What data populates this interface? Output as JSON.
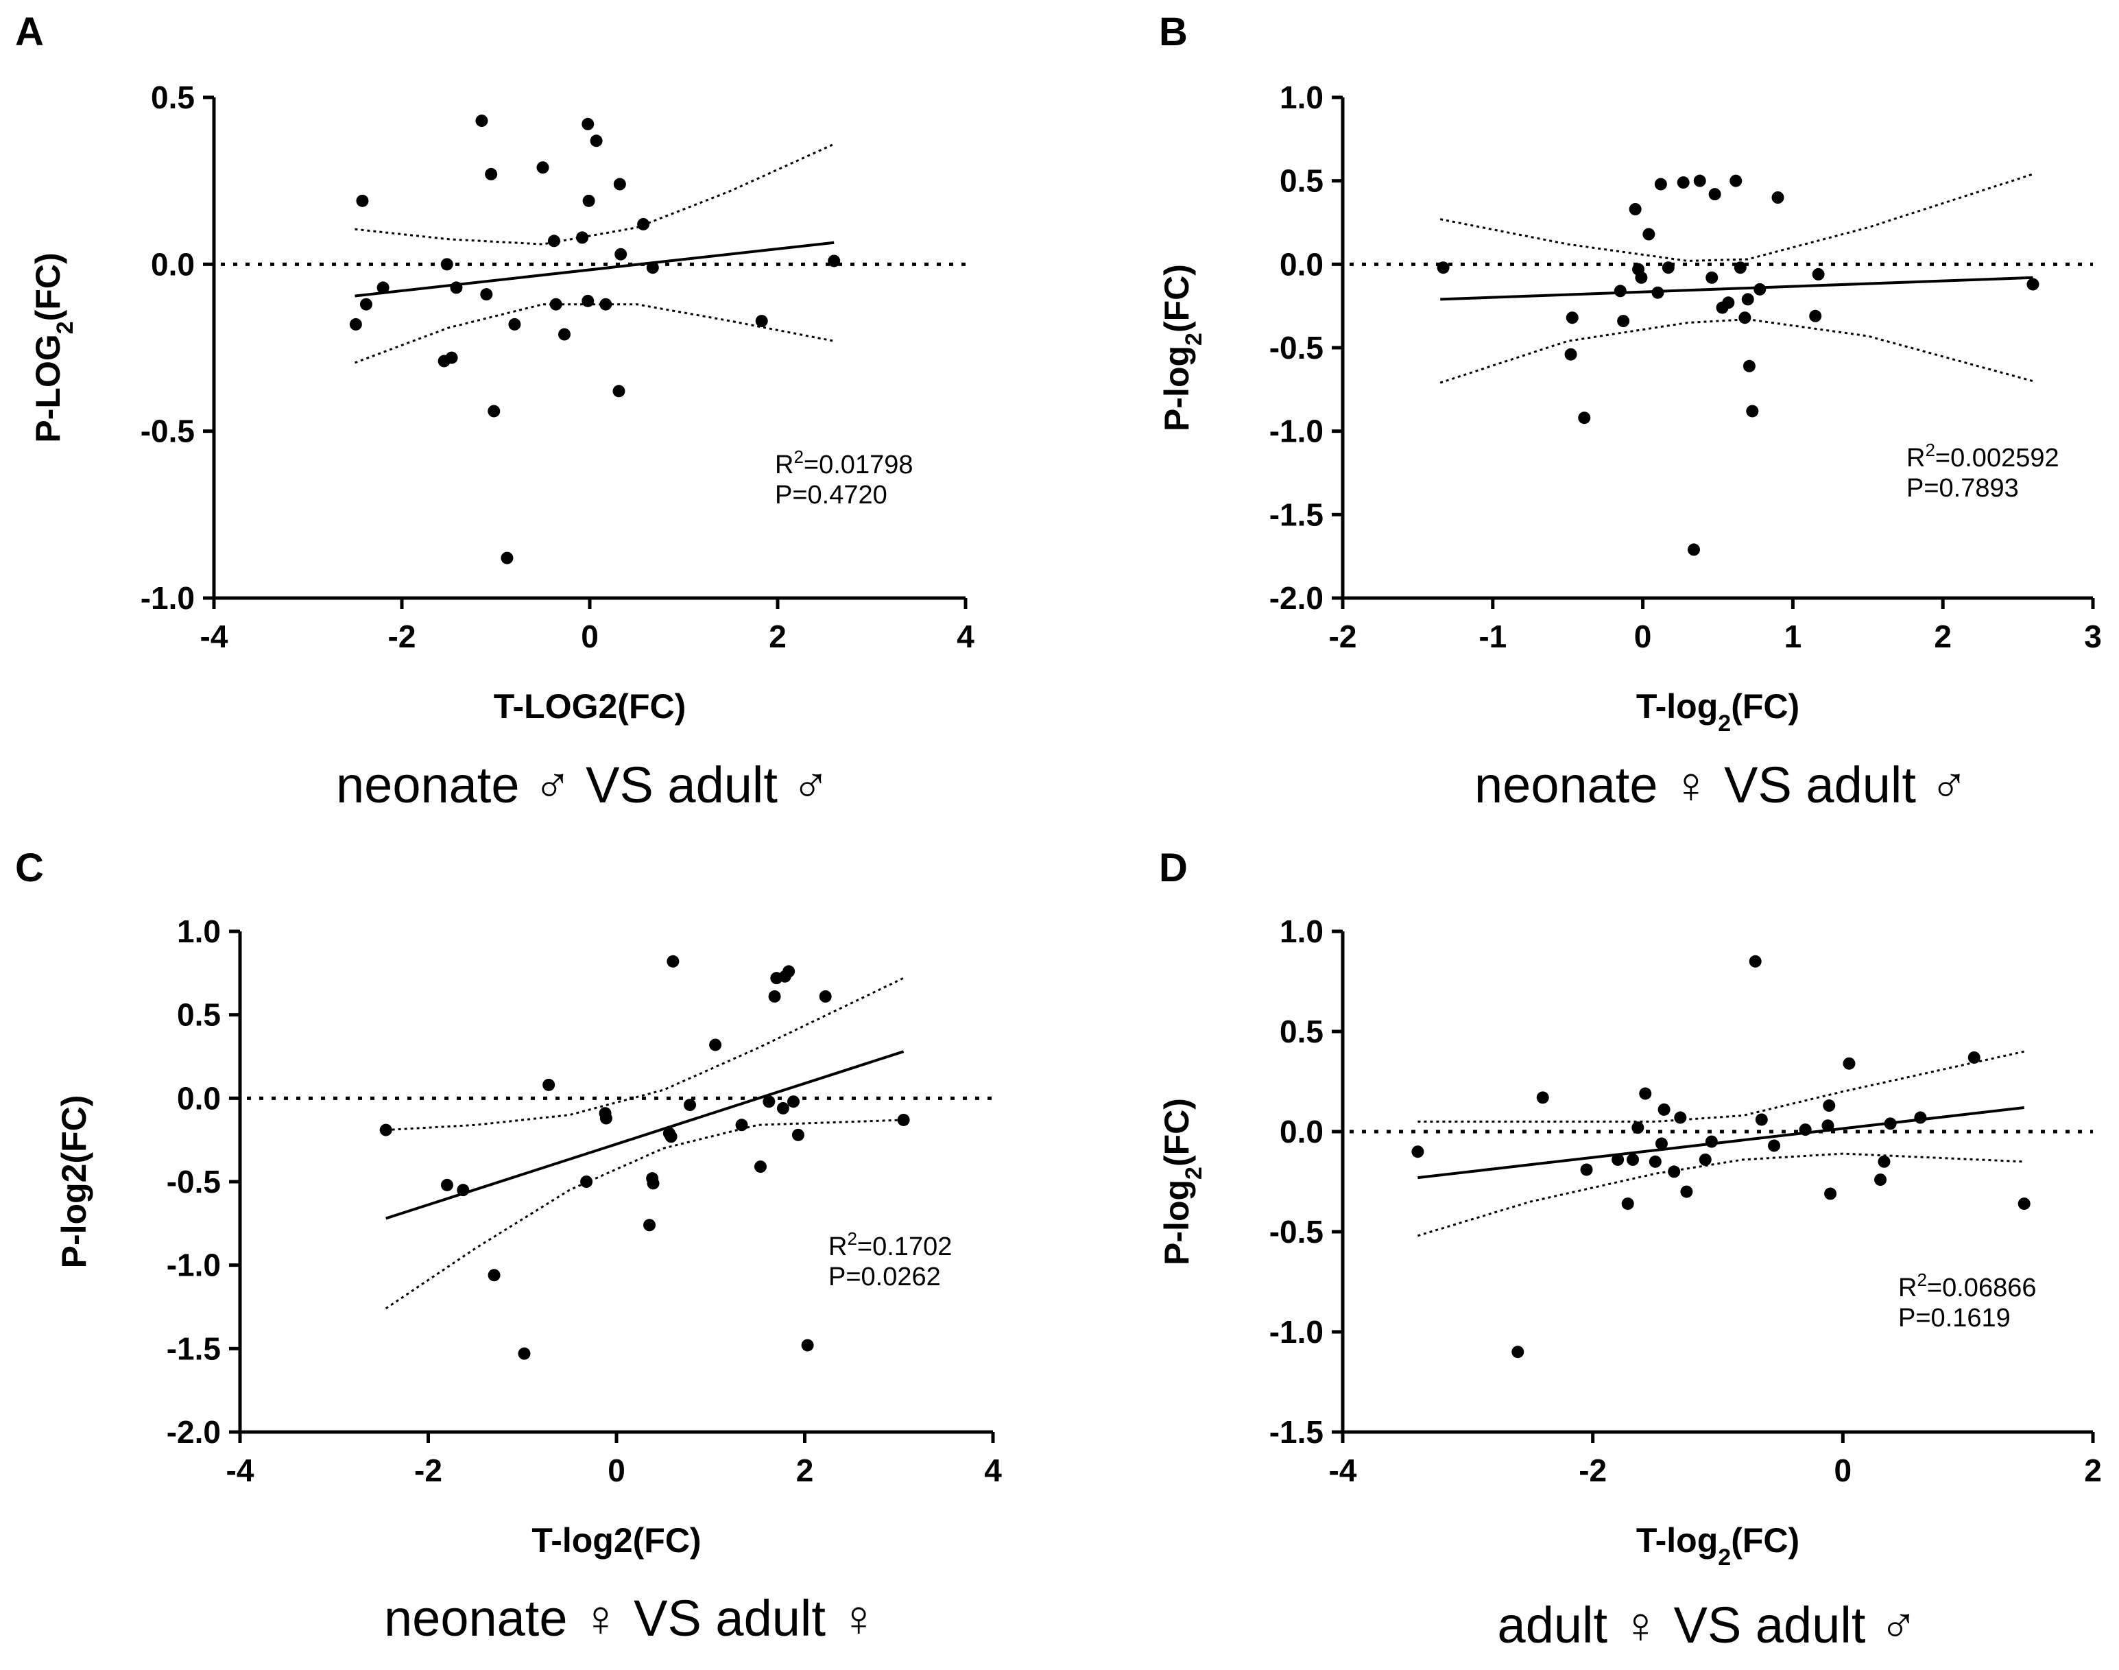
{
  "chart_data": [
    {
      "panel": "A",
      "type": "scatter",
      "caption": "neonate ♂ VS adult ♂",
      "xlabel": "T-LOG2(FC)",
      "ylabel": {
        "pre": "P-LOG",
        "sub": "2",
        "post": "(FC)"
      },
      "xlim": [
        -4,
        4
      ],
      "ylim": [
        -1.0,
        0.5
      ],
      "xticks": [
        -4,
        -2,
        0,
        2,
        4
      ],
      "xtick_labels": [
        "-4",
        "-2",
        "0",
        "2",
        "4"
      ],
      "yticks": [
        -1.0,
        -0.5,
        0.0,
        0.5
      ],
      "ytick_labels": [
        "-1.0",
        "-0.5",
        "0.0",
        "0.5"
      ],
      "stats": {
        "r2_text": "=0.01798",
        "p_text": "P=0.4720"
      },
      "regression": {
        "x": [
          -2.5,
          2.6
        ],
        "y": [
          -0.095,
          0.065
        ]
      },
      "ci_upper": [
        [
          -2.5,
          0.105
        ],
        [
          -1.5,
          0.075
        ],
        [
          -0.5,
          0.06
        ],
        [
          0.5,
          0.11
        ],
        [
          1.5,
          0.22
        ],
        [
          2.6,
          0.36
        ]
      ],
      "ci_lower": [
        [
          -2.5,
          -0.295
        ],
        [
          -1.5,
          -0.19
        ],
        [
          -0.5,
          -0.12
        ],
        [
          0.5,
          -0.12
        ],
        [
          1.5,
          -0.17
        ],
        [
          2.6,
          -0.23
        ]
      ],
      "points": [
        [
          -2.42,
          0.19
        ],
        [
          -2.38,
          -0.12
        ],
        [
          -2.2,
          -0.07
        ],
        [
          -2.49,
          -0.18
        ],
        [
          -1.55,
          -0.29
        ],
        [
          -1.47,
          -0.28
        ],
        [
          -1.52,
          0.0
        ],
        [
          -1.42,
          -0.07
        ],
        [
          -1.15,
          0.43
        ],
        [
          -1.05,
          0.27
        ],
        [
          -1.1,
          -0.09
        ],
        [
          -1.02,
          -0.44
        ],
        [
          -0.88,
          -0.88
        ],
        [
          -0.8,
          -0.18
        ],
        [
          -0.5,
          0.29
        ],
        [
          -0.38,
          0.07
        ],
        [
          -0.36,
          -0.12
        ],
        [
          -0.27,
          -0.21
        ],
        [
          -0.08,
          0.08
        ],
        [
          -0.02,
          0.42
        ],
        [
          0.07,
          0.37
        ],
        [
          -0.01,
          0.19
        ],
        [
          -0.02,
          -0.11
        ],
        [
          0.17,
          -0.12
        ],
        [
          0.32,
          0.24
        ],
        [
          0.33,
          0.03
        ],
        [
          0.31,
          -0.38
        ],
        [
          0.57,
          0.12
        ],
        [
          0.67,
          -0.01
        ],
        [
          1.83,
          -0.17
        ],
        [
          2.6,
          0.01
        ]
      ]
    },
    {
      "panel": "B",
      "type": "scatter",
      "caption": "neonate ♀ VS adult ♂",
      "xlabel": {
        "pre": "T-log",
        "sub": "2",
        "post": "(FC)"
      },
      "ylabel": {
        "pre": "P-log",
        "sub": "2",
        "post": "(FC)"
      },
      "xlim": [
        -2,
        3
      ],
      "ylim": [
        -2.0,
        1.0
      ],
      "xticks": [
        -2,
        -1,
        0,
        1,
        2,
        3
      ],
      "xtick_labels": [
        "-2",
        "-1",
        "0",
        "1",
        "2",
        "3"
      ],
      "yticks": [
        -2.0,
        -1.5,
        -1.0,
        -0.5,
        0.0,
        0.5,
        1.0
      ],
      "ytick_labels": [
        "-2.0",
        "-1.5",
        "-1.0",
        "-0.5",
        "0.0",
        "0.5",
        "1.0"
      ],
      "stats": {
        "r2_text": "=0.002592",
        "p_text": "P=0.7893"
      },
      "regression": {
        "x": [
          -1.35,
          2.6
        ],
        "y": [
          -0.21,
          -0.08
        ]
      },
      "ci_upper": [
        [
          -1.35,
          0.27
        ],
        [
          -0.5,
          0.12
        ],
        [
          0.3,
          0.02
        ],
        [
          0.7,
          0.03
        ],
        [
          1.5,
          0.22
        ],
        [
          2.6,
          0.54
        ]
      ],
      "ci_lower": [
        [
          -1.35,
          -0.71
        ],
        [
          -0.5,
          -0.46
        ],
        [
          0.3,
          -0.35
        ],
        [
          0.7,
          -0.33
        ],
        [
          1.5,
          -0.43
        ],
        [
          2.6,
          -0.7
        ]
      ],
      "points": [
        [
          -1.33,
          -0.02
        ],
        [
          -0.47,
          -0.32
        ],
        [
          -0.48,
          -0.54
        ],
        [
          -0.39,
          -0.92
        ],
        [
          -0.15,
          -0.16
        ],
        [
          -0.13,
          -0.34
        ],
        [
          -0.05,
          0.33
        ],
        [
          -0.03,
          -0.03
        ],
        [
          -0.01,
          -0.08
        ],
        [
          0.04,
          0.18
        ],
        [
          0.1,
          -0.17
        ],
        [
          0.12,
          0.48
        ],
        [
          0.17,
          -0.02
        ],
        [
          0.27,
          0.49
        ],
        [
          0.34,
          -1.71
        ],
        [
          0.38,
          0.5
        ],
        [
          0.46,
          -0.08
        ],
        [
          0.48,
          0.42
        ],
        [
          0.53,
          -0.26
        ],
        [
          0.57,
          -0.23
        ],
        [
          0.62,
          0.5
        ],
        [
          0.65,
          -0.02
        ],
        [
          0.68,
          -0.32
        ],
        [
          0.7,
          -0.21
        ],
        [
          0.71,
          -0.61
        ],
        [
          0.73,
          -0.88
        ],
        [
          0.78,
          -0.15
        ],
        [
          0.9,
          0.4
        ],
        [
          1.17,
          -0.06
        ],
        [
          1.15,
          -0.31
        ],
        [
          2.6,
          -0.12
        ]
      ]
    },
    {
      "panel": "C",
      "type": "scatter",
      "caption": "neonate ♀ VS adult ♀",
      "xlabel": "T-log2(FC)",
      "ylabel": "P-log2(FC)",
      "xlim": [
        -4,
        4
      ],
      "ylim": [
        -2.0,
        1.0
      ],
      "xticks": [
        -4,
        -2,
        0,
        2,
        4
      ],
      "xtick_labels": [
        "-4",
        "-2",
        "0",
        "2",
        "4"
      ],
      "yticks": [
        -2.0,
        -1.5,
        -1.0,
        -0.5,
        0.0,
        0.5,
        1.0
      ],
      "ytick_labels": [
        "-2.0",
        "-1.5",
        "-1.0",
        "-0.5",
        "0.0",
        "0.5",
        "1.0"
      ],
      "stats": {
        "r2_text": "=0.1702",
        "p_text": "P=0.0262"
      },
      "regression": {
        "x": [
          -2.45,
          3.05
        ],
        "y": [
          -0.72,
          0.28
        ]
      },
      "ci_upper": [
        [
          -2.45,
          -0.19
        ],
        [
          -1.5,
          -0.16
        ],
        [
          -0.5,
          -0.1
        ],
        [
          0.5,
          0.05
        ],
        [
          1.5,
          0.3
        ],
        [
          3.05,
          0.72
        ]
      ],
      "ci_lower": [
        [
          -2.45,
          -1.26
        ],
        [
          -1.5,
          -0.9
        ],
        [
          -0.5,
          -0.55
        ],
        [
          0.5,
          -0.3
        ],
        [
          1.5,
          -0.16
        ],
        [
          3.05,
          -0.13
        ]
      ],
      "points": [
        [
          -2.45,
          -0.19
        ],
        [
          -1.8,
          -0.52
        ],
        [
          -1.63,
          -0.55
        ],
        [
          -1.3,
          -1.06
        ],
        [
          -0.98,
          -1.53
        ],
        [
          -0.72,
          0.08
        ],
        [
          -0.32,
          -0.5
        ],
        [
          -0.12,
          -0.09
        ],
        [
          -0.11,
          -0.12
        ],
        [
          0.35,
          -0.76
        ],
        [
          0.38,
          -0.48
        ],
        [
          0.39,
          -0.51
        ],
        [
          0.56,
          -0.21
        ],
        [
          0.58,
          -0.23
        ],
        [
          0.6,
          0.82
        ],
        [
          0.78,
          -0.04
        ],
        [
          1.05,
          0.32
        ],
        [
          1.33,
          -0.16
        ],
        [
          1.53,
          -0.41
        ],
        [
          1.62,
          -0.02
        ],
        [
          1.68,
          0.61
        ],
        [
          1.7,
          0.72
        ],
        [
          1.77,
          -0.06
        ],
        [
          1.79,
          0.73
        ],
        [
          1.83,
          0.76
        ],
        [
          1.88,
          -0.02
        ],
        [
          1.93,
          -0.22
        ],
        [
          2.03,
          -1.48
        ],
        [
          2.22,
          0.61
        ],
        [
          3.05,
          -0.13
        ]
      ]
    },
    {
      "panel": "D",
      "type": "scatter",
      "caption": "adult ♀ VS adult ♂",
      "xlabel": {
        "pre": "T-log",
        "sub": "2",
        "post": "(FC)"
      },
      "ylabel": {
        "pre": "P-log",
        "sub": "2",
        "post": "(FC)"
      },
      "xlim": [
        -4,
        2
      ],
      "ylim": [
        -1.5,
        1.0
      ],
      "xticks": [
        -4,
        -2,
        0,
        2
      ],
      "xtick_labels": [
        "-4",
        "-2",
        "0",
        "2"
      ],
      "yticks": [
        -1.5,
        -1.0,
        -0.5,
        0.0,
        0.5,
        1.0
      ],
      "ytick_labels": [
        "-1.5",
        "-1.0",
        "-0.5",
        "0.0",
        "0.5",
        "1.0"
      ],
      "stats": {
        "r2_text": "=0.06866",
        "p_text": "P=0.1619"
      },
      "regression": {
        "x": [
          -3.4,
          1.45
        ],
        "y": [
          -0.23,
          0.12
        ]
      },
      "ci_upper": [
        [
          -3.4,
          0.05
        ],
        [
          -2.5,
          0.05
        ],
        [
          -1.5,
          0.05
        ],
        [
          -0.8,
          0.08
        ],
        [
          0,
          0.2
        ],
        [
          1.45,
          0.4
        ]
      ],
      "ci_lower": [
        [
          -3.4,
          -0.52
        ],
        [
          -2.5,
          -0.35
        ],
        [
          -1.5,
          -0.21
        ],
        [
          -0.8,
          -0.14
        ],
        [
          0,
          -0.11
        ],
        [
          1.45,
          -0.15
        ]
      ],
      "points": [
        [
          -3.4,
          -0.1
        ],
        [
          -2.6,
          -1.1
        ],
        [
          -2.4,
          0.17
        ],
        [
          -2.05,
          -0.19
        ],
        [
          -1.8,
          -0.14
        ],
        [
          -1.72,
          -0.36
        ],
        [
          -1.68,
          -0.14
        ],
        [
          -1.64,
          0.02
        ],
        [
          -1.58,
          0.19
        ],
        [
          -1.5,
          -0.15
        ],
        [
          -1.45,
          -0.06
        ],
        [
          -1.43,
          0.11
        ],
        [
          -1.35,
          -0.2
        ],
        [
          -1.3,
          0.07
        ],
        [
          -1.25,
          -0.3
        ],
        [
          -1.1,
          -0.14
        ],
        [
          -1.05,
          -0.05
        ],
        [
          -0.7,
          0.85
        ],
        [
          -0.65,
          0.06
        ],
        [
          -0.55,
          -0.07
        ],
        [
          -0.3,
          0.01
        ],
        [
          -0.12,
          0.03
        ],
        [
          -0.11,
          0.13
        ],
        [
          -0.1,
          -0.31
        ],
        [
          0.05,
          0.34
        ],
        [
          0.3,
          -0.24
        ],
        [
          0.33,
          -0.15
        ],
        [
          0.38,
          0.04
        ],
        [
          0.62,
          0.07
        ],
        [
          1.05,
          0.37
        ],
        [
          1.45,
          -0.36
        ]
      ]
    }
  ]
}
